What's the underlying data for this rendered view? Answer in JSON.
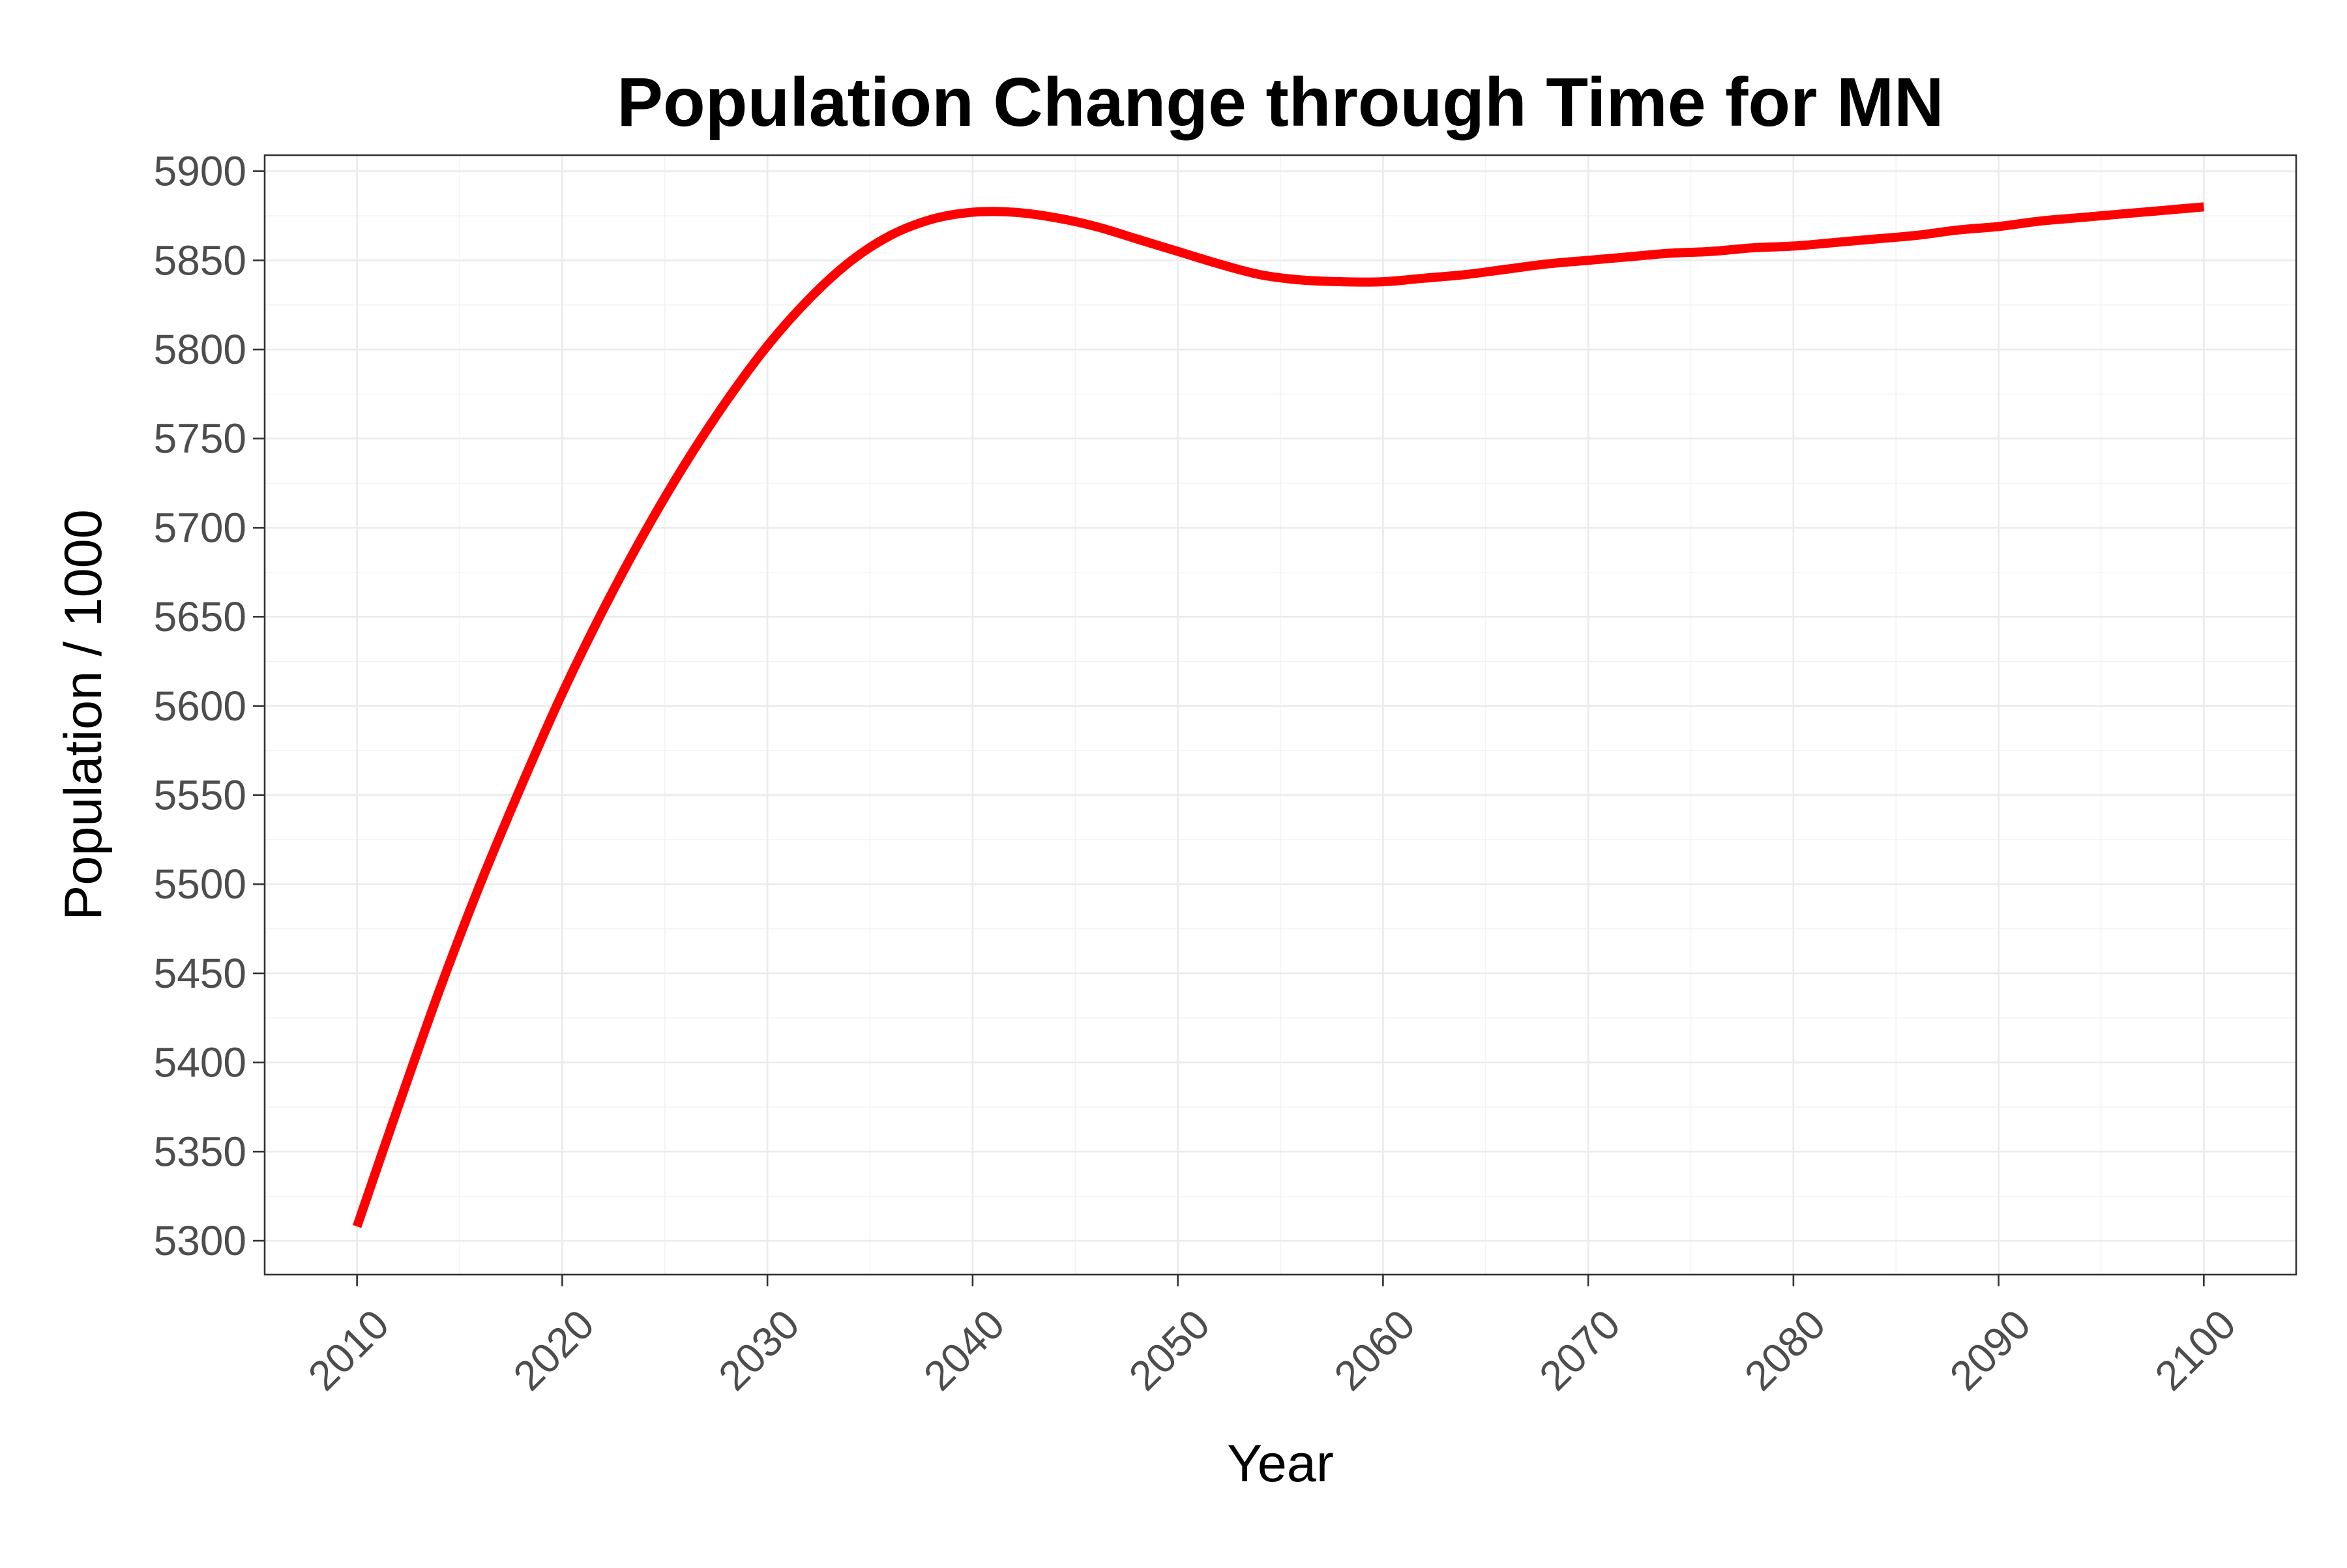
{
  "chart_data": {
    "type": "line",
    "title": "Population Change through Time for MN",
    "xlabel": "Year",
    "ylabel": "Population / 1000",
    "xlim": [
      2005.5,
      2104.5
    ],
    "ylim": [
      5281,
      5909
    ],
    "x_ticks": [
      2010,
      2020,
      2030,
      2040,
      2050,
      2060,
      2070,
      2080,
      2090,
      2100
    ],
    "y_ticks": [
      5300,
      5350,
      5400,
      5450,
      5500,
      5550,
      5600,
      5650,
      5700,
      5750,
      5800,
      5850,
      5900
    ],
    "grid": true,
    "legend": "none",
    "series": [
      {
        "color": "#ff0000",
        "x": [
          2010,
          2012,
          2014,
          2016,
          2018,
          2020,
          2022,
          2024,
          2026,
          2028,
          2030,
          2032,
          2034,
          2036,
          2038,
          2040,
          2042,
          2044,
          2046,
          2048,
          2050,
          2052,
          2054,
          2056,
          2058,
          2060,
          2062,
          2064,
          2066,
          2068,
          2070,
          2072,
          2074,
          2076,
          2078,
          2080,
          2082,
          2084,
          2086,
          2088,
          2090,
          2092,
          2094,
          2096,
          2098,
          2100
        ],
        "values": [
          5308,
          5375,
          5440,
          5500,
          5555,
          5607,
          5654,
          5697,
          5736,
          5771,
          5802,
          5828,
          5849,
          5864,
          5873,
          5877,
          5877,
          5874,
          5869,
          5862,
          5855,
          5848,
          5842,
          5839,
          5838,
          5838,
          5840,
          5842,
          5845,
          5848,
          5850,
          5852,
          5854,
          5855,
          5857,
          5858,
          5860,
          5862,
          5864,
          5867,
          5869,
          5872,
          5874,
          5876,
          5878,
          5880
        ]
      }
    ]
  }
}
